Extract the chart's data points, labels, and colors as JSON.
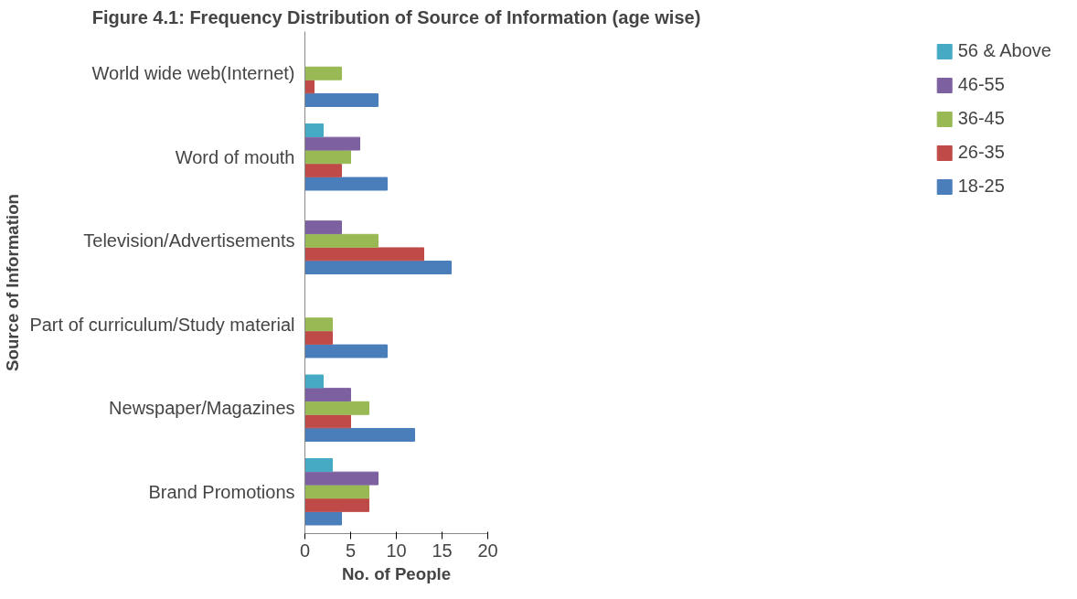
{
  "chart_data": {
    "type": "bar",
    "orientation": "horizontal",
    "title": "Figure 4.1: Frequency Distribution of Source of Information (age wise)",
    "xlabel": "No. of People",
    "ylabel": "Source of Information",
    "categories": [
      "World wide web(Internet)",
      "Word of mouth",
      "Television/Advertisements",
      "Part of curriculum/Study material",
      "Newspaper/Magazines",
      "Brand Promotions"
    ],
    "series": [
      {
        "name": "18-25",
        "color": "#4a7ebb",
        "values": [
          8,
          9,
          16,
          9,
          12,
          4
        ]
      },
      {
        "name": "26-35",
        "color": "#be4b48",
        "values": [
          1,
          4,
          13,
          3,
          5,
          7
        ]
      },
      {
        "name": "36-45",
        "color": "#98b954",
        "values": [
          4,
          5,
          8,
          3,
          7,
          7
        ]
      },
      {
        "name": "46-55",
        "color": "#7d60a0",
        "values": [
          0,
          6,
          4,
          0,
          5,
          8
        ]
      },
      {
        "name": "56 & Above",
        "color": "#46aac5",
        "values": [
          0,
          2,
          0,
          0,
          2,
          3
        ]
      }
    ],
    "xlim": [
      0,
      20
    ],
    "xticks": [
      0,
      5,
      10,
      15,
      20
    ],
    "grid": false,
    "legend": "right"
  }
}
